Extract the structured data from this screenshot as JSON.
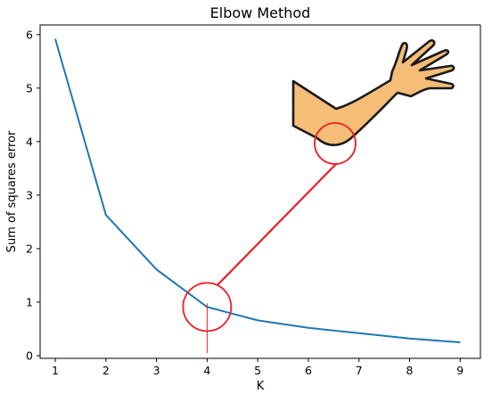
{
  "chart_data": {
    "type": "line",
    "title": "Elbow Method",
    "xlabel": "K",
    "ylabel": "Sum of squares error",
    "x": [
      1,
      2,
      3,
      4,
      5,
      6,
      7,
      8,
      9
    ],
    "series": [
      {
        "values": [
          5.92,
          2.63,
          1.61,
          0.91,
          0.66,
          0.52,
          0.42,
          0.32,
          0.25
        ]
      }
    ],
    "xlim": [
      0.7,
      9.4
    ],
    "ylim": [
      -0.05,
      6.18
    ],
    "xticks": [
      "1",
      "2",
      "3",
      "4",
      "5",
      "6",
      "7",
      "8",
      "9"
    ],
    "yticks": [
      "0",
      "1",
      "2",
      "3",
      "4",
      "5",
      "6"
    ],
    "grid": false,
    "line_color": "#1f77b4",
    "annotation_color": "#ee1c25",
    "annotation": {
      "elbow_point": {
        "x": 4,
        "y": 0.91
      },
      "icon": "arm-elbow-icon",
      "skin_color": "#f5bd77",
      "outline_color": "#1a1a1a"
    }
  }
}
